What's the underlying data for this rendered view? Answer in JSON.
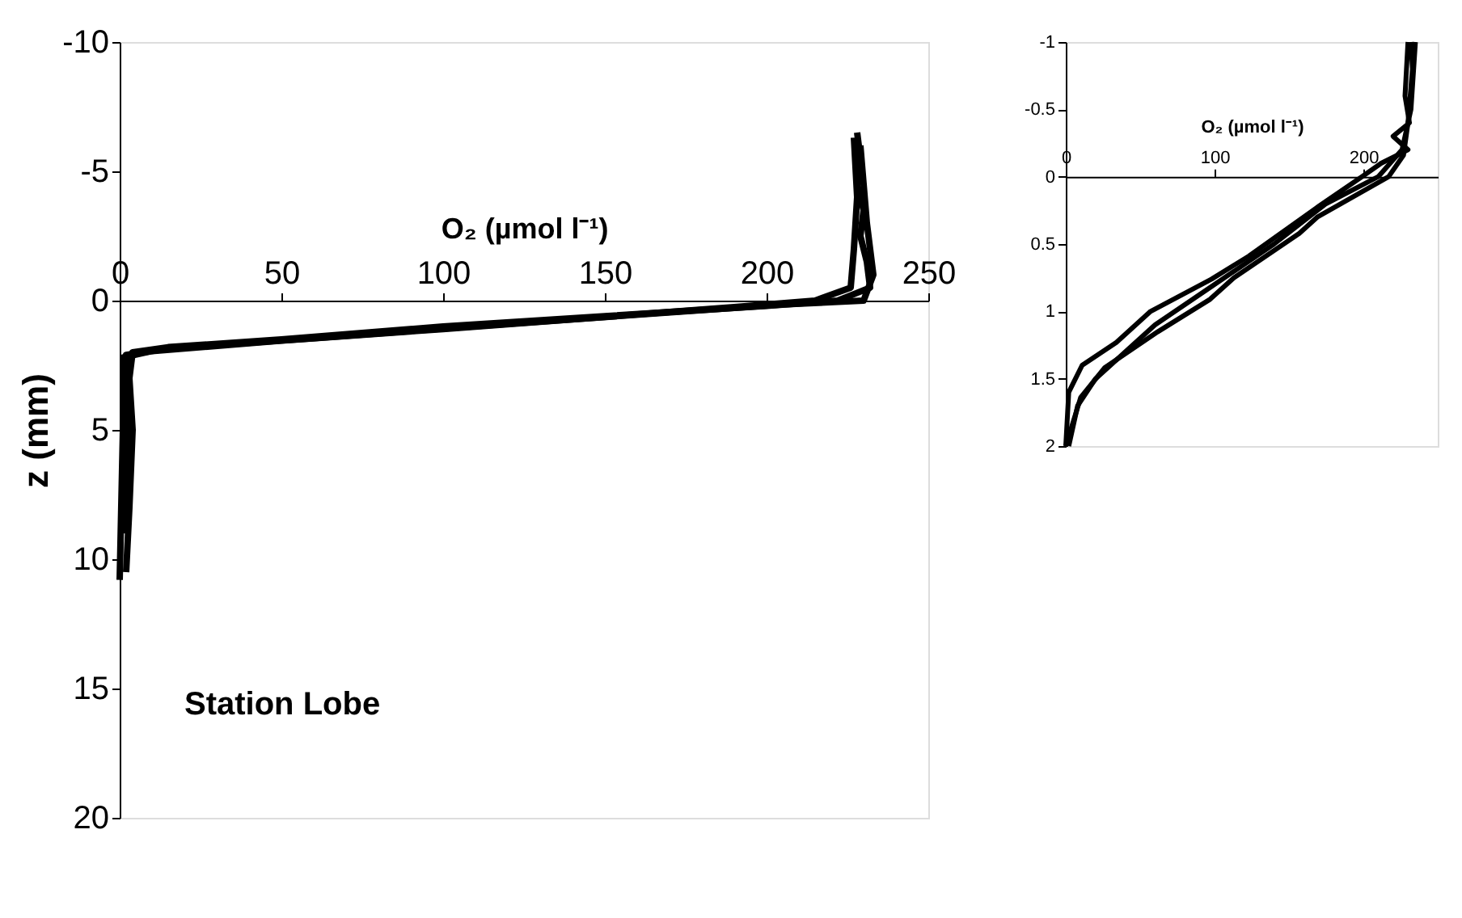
{
  "chart_data": [
    {
      "type": "line",
      "xlabel": "O₂ (µmol l⁻¹)",
      "ylabel": "z (mm)",
      "xlim": [
        0,
        250
      ],
      "xticks": [
        0,
        50,
        100,
        150,
        200,
        250
      ],
      "ylim": [
        20,
        -10
      ],
      "yticks": [
        -10,
        -5,
        0,
        5,
        10,
        15,
        20
      ],
      "grid": false,
      "annotations": [
        "Station Lobe"
      ],
      "series": [
        {
          "color": "#000000",
          "x": [
            228,
            229,
            228,
            230,
            229,
            231,
            232,
            228,
            222,
            200,
            150,
            100,
            50,
            15,
            4,
            3,
            4,
            3,
            2
          ],
          "values": [
            -6.5,
            -5.5,
            -4.5,
            -3.5,
            -2.5,
            -1.5,
            -0.5,
            -0.3,
            0,
            0.2,
            0.6,
            1.0,
            1.5,
            1.8,
            2.0,
            3,
            5,
            8,
            10.5
          ]
        },
        {
          "color": "#000000",
          "x": [
            227,
            228,
            227,
            226,
            215,
            190,
            100,
            50,
            10,
            1,
            1,
            0
          ],
          "values": [
            -6.3,
            -4,
            -2,
            -0.5,
            0,
            0.25,
            1.1,
            1.55,
            1.95,
            2.2,
            5,
            10.8
          ]
        },
        {
          "color": "#000000",
          "x": [
            229,
            231,
            233,
            230,
            205,
            120,
            60,
            15,
            2,
            3,
            2,
            1
          ],
          "values": [
            -6,
            -3,
            -1,
            0,
            0.15,
            0.9,
            1.45,
            1.85,
            2.1,
            4,
            7,
            9
          ]
        }
      ]
    },
    {
      "type": "line",
      "xlabel": "O₂ (µmol l⁻¹)",
      "xlim": [
        0,
        250
      ],
      "xticks": [
        0,
        100,
        200
      ],
      "ylim": [
        2,
        -1
      ],
      "yticks": [
        -1,
        -0.5,
        0,
        0.5,
        1,
        1.5,
        2
      ],
      "grid": false,
      "series": [
        {
          "color": "#000000",
          "x": [
            232,
            233,
            230,
            227,
            217,
            169,
            157,
            113,
            97,
            62,
            26,
            10,
            0
          ],
          "values": [
            -1,
            -0.8,
            -0.4,
            -0.16,
            0,
            0.3,
            0.42,
            0.75,
            0.91,
            1.15,
            1.42,
            1.64,
            2
          ]
        },
        {
          "color": "#000000",
          "x": [
            230,
            228,
            231,
            220,
            230,
            212,
            199,
            170,
            123,
            98,
            57,
            34,
            11,
            2,
            0
          ],
          "values": [
            -1,
            -0.6,
            -0.4,
            -0.3,
            -0.2,
            -0.1,
            0,
            0.22,
            0.59,
            0.76,
            1.0,
            1.23,
            1.4,
            1.6,
            2
          ]
        },
        {
          "color": "#000000",
          "x": [
            235,
            232,
            226,
            210,
            175,
            140,
            100,
            60,
            35,
            20,
            8,
            2
          ],
          "values": [
            -1,
            -0.5,
            -0.2,
            0,
            0.2,
            0.5,
            0.8,
            1.1,
            1.35,
            1.5,
            1.7,
            2
          ]
        }
      ]
    }
  ]
}
